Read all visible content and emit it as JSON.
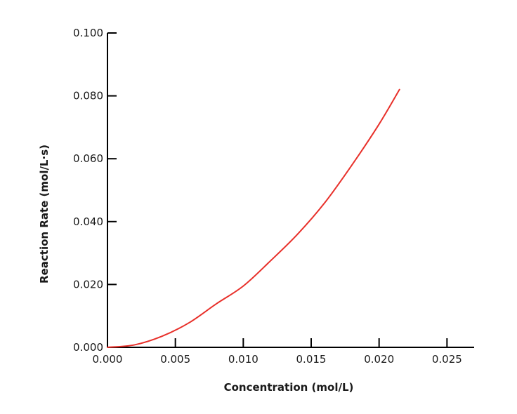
{
  "chart_data": {
    "type": "line",
    "title": "",
    "xlabel": "Concentration (mol/L)",
    "ylabel": "Reaction Rate (mol/L·s)",
    "xlim": [
      0.0,
      0.027
    ],
    "ylim": [
      0.0,
      0.1
    ],
    "x_ticks": [
      "0.000",
      "0.005",
      "0.010",
      "0.015",
      "0.020",
      "0.025"
    ],
    "y_ticks": [
      "0.000",
      "0.020",
      "0.040",
      "0.060",
      "0.080",
      "0.100"
    ],
    "grid": false,
    "series": [
      {
        "color": "#e8302a",
        "x": [
          0.0,
          0.002,
          0.004,
          0.006,
          0.008,
          0.01,
          0.012,
          0.014,
          0.016,
          0.018,
          0.02,
          0.0215
        ],
        "y": [
          0.0,
          0.0008,
          0.0035,
          0.0078,
          0.0138,
          0.0195,
          0.0275,
          0.036,
          0.046,
          0.058,
          0.071,
          0.082
        ]
      }
    ]
  }
}
